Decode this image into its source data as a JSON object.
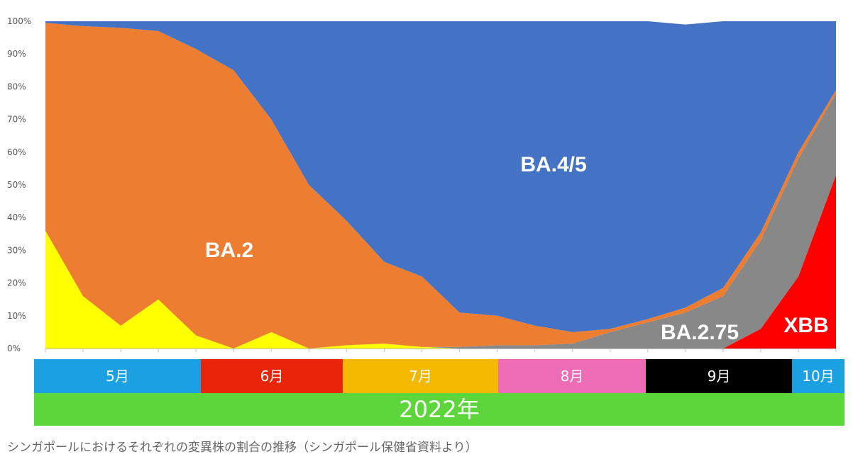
{
  "chart_data": {
    "type": "area",
    "stacked": true,
    "normalized": true,
    "yticks": [
      "0%",
      "10%",
      "20%",
      "30%",
      "40%",
      "50%",
      "60%",
      "70%",
      "80%",
      "90%",
      "100%"
    ],
    "ylim": [
      0,
      100
    ],
    "grid": false,
    "x_weeks": [
      0,
      1,
      2,
      3,
      4,
      5,
      6,
      7,
      8,
      9,
      10,
      11,
      12,
      13,
      14,
      15,
      16,
      17,
      18,
      19,
      20,
      21
    ],
    "series": [
      {
        "name": "",
        "color": "#ffff00",
        "values": [
          36,
          16,
          7,
          15,
          4,
          0,
          5,
          0,
          1,
          1.5,
          0.5,
          0,
          0,
          0,
          0,
          0,
          0,
          0,
          0,
          0,
          0,
          0
        ]
      },
      {
        "name": "XBB",
        "color": "#ff0000",
        "values": [
          0,
          0,
          0,
          0,
          0,
          0,
          0,
          0,
          0,
          0,
          0,
          0,
          0,
          0,
          0,
          0,
          0,
          0,
          0,
          6,
          22,
          53
        ]
      },
      {
        "name": "BA.2.75",
        "color": "#888888",
        "values": [
          0,
          0,
          0,
          0,
          0,
          0,
          0,
          0,
          0,
          0,
          0,
          0.5,
          1,
          1,
          1.5,
          5,
          8,
          11,
          16,
          27,
          36,
          25
        ]
      },
      {
        "name": "BA.2",
        "color": "#ed7d31",
        "values": [
          63.5,
          82.5,
          91,
          82,
          87.5,
          85,
          65,
          50,
          38,
          25,
          21.5,
          10.5,
          9,
          6,
          3.5,
          1,
          1,
          1.5,
          2.5,
          2.5,
          2,
          1
        ]
      },
      {
        "name": "BA.4/5",
        "color": "#4472c4",
        "values": [
          0.5,
          1.5,
          2,
          3,
          8.5,
          15,
          30,
          50,
          61,
          73.5,
          78,
          89,
          90,
          93,
          95,
          94,
          91,
          86.5,
          81.5,
          64.5,
          40,
          21
        ]
      }
    ],
    "months": [
      {
        "label": "5月",
        "bg": "#1ba1e2",
        "fg": "#ffffff"
      },
      {
        "label": "6月",
        "bg": "#e8250a",
        "fg": "#ffffff"
      },
      {
        "label": "7月",
        "bg": "#f5b800",
        "fg": "#ffffff"
      },
      {
        "label": "8月",
        "bg": "#ee6bb5",
        "fg": "#ffffff"
      },
      {
        "label": "9月",
        "bg": "#000000",
        "fg": "#ffffff"
      },
      {
        "label": "10月",
        "bg": "#1ba1e2",
        "fg": "#ffffff"
      }
    ],
    "year_label": "2022年",
    "year_bg": "#5cd63a"
  },
  "caption": "シンガポールにおけるそれぞれの変異株の割合の推移（シンガポール保健省資料より）"
}
